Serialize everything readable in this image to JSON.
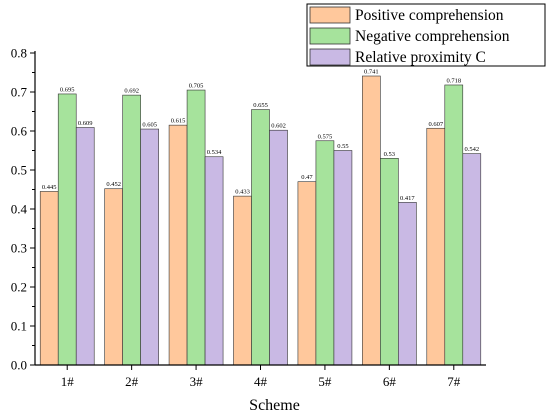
{
  "chart_data": {
    "type": "bar",
    "xlabel": "Scheme",
    "ylabel": "",
    "categories": [
      "1#",
      "2#",
      "3#",
      "4#",
      "5#",
      "6#",
      "7#"
    ],
    "ylim": [
      0.0,
      0.8
    ],
    "yticks": [
      "0.0",
      "0.1",
      "0.2",
      "0.3",
      "0.4",
      "0.5",
      "0.6",
      "0.7",
      "0.8"
    ],
    "grid": false,
    "legend_position": "top-right",
    "series": [
      {
        "name": "Positive comprehension",
        "color": "#FFC89C",
        "values": [
          0.445,
          0.452,
          0.615,
          0.433,
          0.47,
          0.741,
          0.607
        ],
        "labels": [
          "0.445",
          "0.452",
          "0.615",
          "0.433",
          "0.47",
          "0.741",
          "0.607"
        ]
      },
      {
        "name": "Negative comprehension",
        "color": "#A6E39C",
        "values": [
          0.695,
          0.692,
          0.705,
          0.655,
          0.575,
          0.53,
          0.718
        ],
        "labels": [
          "0.695",
          "0.692",
          "0.705",
          "0.655",
          "0.575",
          "0.53",
          "0.718"
        ]
      },
      {
        "name": "Relative proximity C",
        "color": "#C9B9E4",
        "values": [
          0.609,
          0.605,
          0.534,
          0.602,
          0.55,
          0.417,
          0.542
        ],
        "labels": [
          "0.609",
          "0.605",
          "0.534",
          "0.602",
          "0.55",
          "0.417",
          "0.542"
        ]
      }
    ]
  }
}
